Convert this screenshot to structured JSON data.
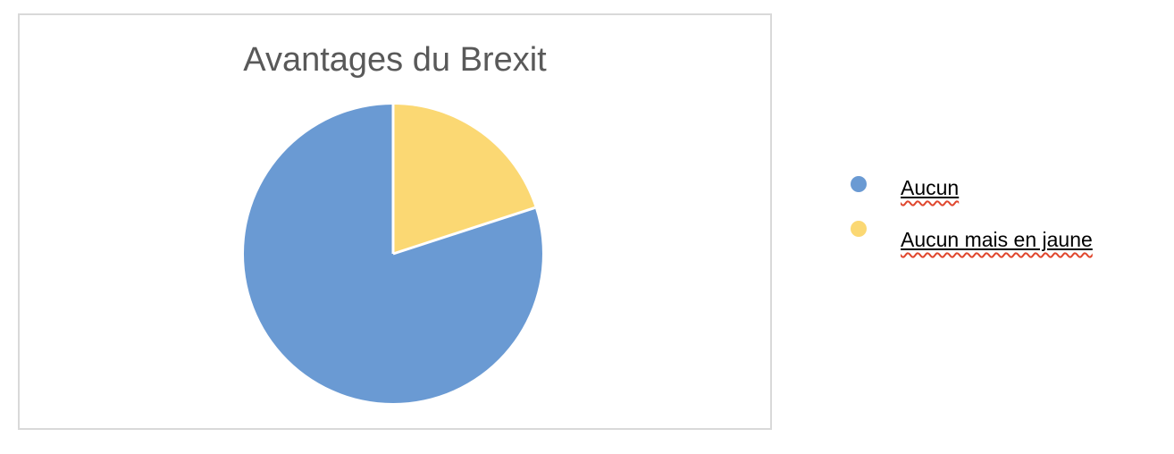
{
  "chart": {
    "title": "Avantages du Brexit",
    "title_color": "#595959",
    "frame_border_color": "#d9d9d9",
    "background": "#ffffff"
  },
  "chart_data": {
    "type": "pie",
    "title": "Avantages du Brexit",
    "categories": [
      "Aucun",
      "Aucun mais en jaune"
    ],
    "values": [
      80,
      20
    ],
    "values_unit": "percent (estimated from slice angles)",
    "colors": [
      "#6a9ad3",
      "#fbd873"
    ],
    "legend_position": "right",
    "data_labels": false,
    "slice_divider_color": "#ffffff",
    "slices": [
      {
        "label": "Aucun",
        "value": 80,
        "color": "#6a9ad3",
        "start_deg": 72,
        "end_deg": 360
      },
      {
        "label": "Aucun mais en jaune",
        "value": 20,
        "color": "#fbd873",
        "start_deg": 0,
        "end_deg": 72
      }
    ]
  },
  "legend": {
    "items": [
      {
        "label": "Aucun",
        "color": "#6a9ad3"
      },
      {
        "label": "Aucun mais en jaune",
        "color": "#fbd873"
      }
    ],
    "spellcheck_underline_color": "#e0472e"
  }
}
